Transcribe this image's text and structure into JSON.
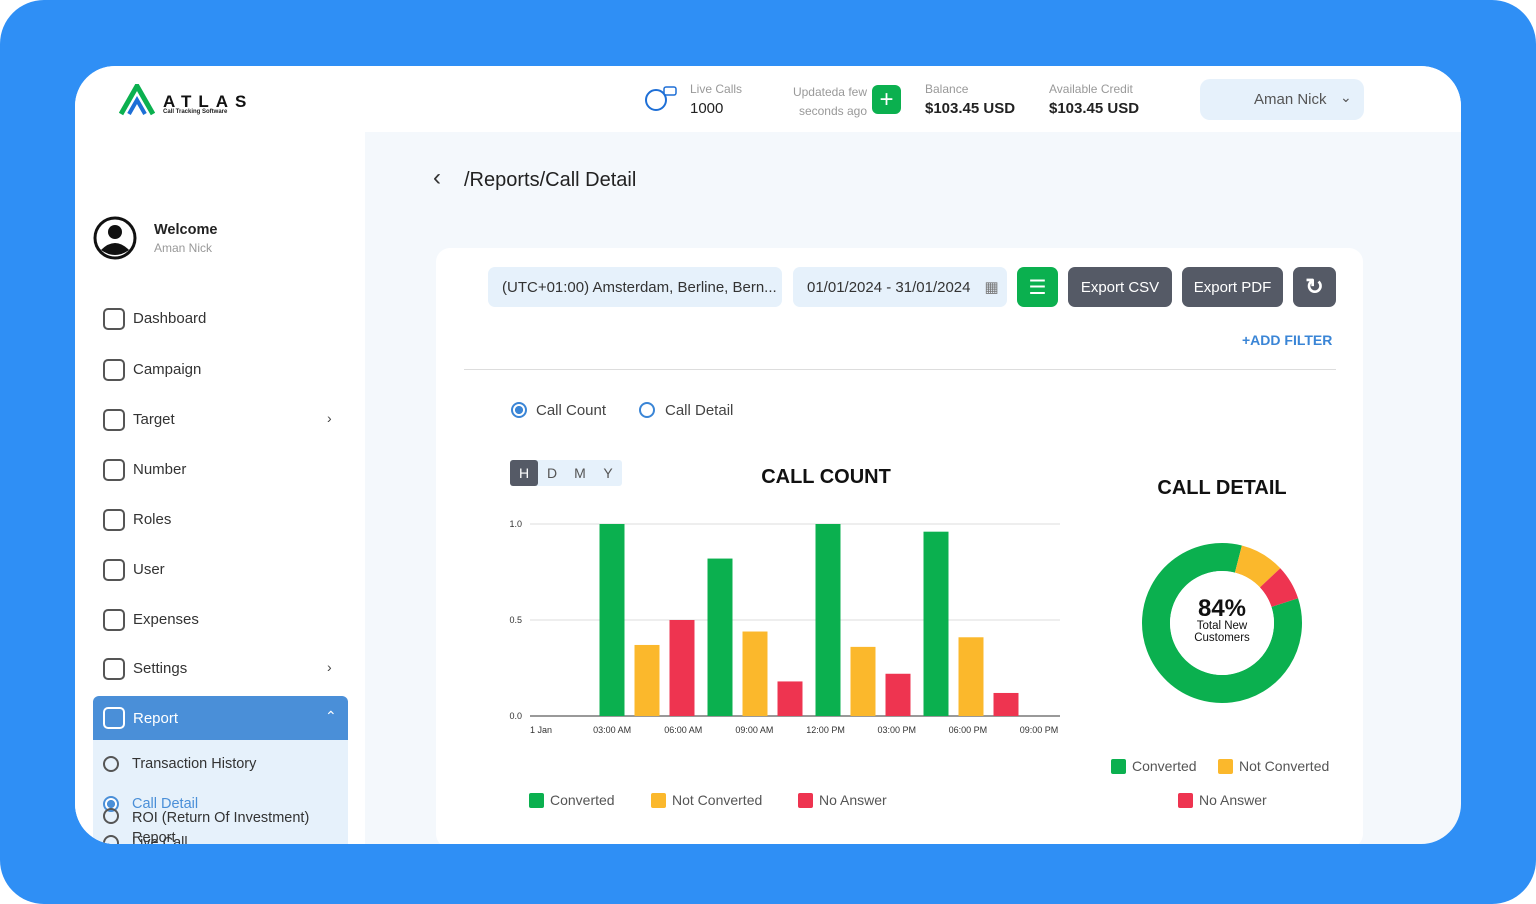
{
  "header": {
    "logo": "ATLAS",
    "tagline": "Call Tracking Software",
    "live_calls_label": "Live Calls",
    "live_calls": 1000,
    "updated": "Updateda few seconds ago",
    "balance_label": "Balance",
    "balance": "$103.45 USD",
    "credit_label": "Available Credit",
    "credit": "$103.45 USD",
    "user": "Aman Nick"
  },
  "sidebar": {
    "welcome": "Welcome",
    "name": "Aman Nick",
    "menu": [
      "Dashboard",
      "Campaign",
      "Target",
      "Number",
      "Roles",
      "User",
      "Expenses",
      "Settings",
      "Report"
    ],
    "submenu": [
      "Transaction History",
      "Call Detail",
      "Live Call",
      "ROI (Return Of Investment) Report"
    ]
  },
  "main": {
    "breadcrumb": "/Reports/Call Detail",
    "timezone": "(UTC+01:00) Amsterdam, Berline, Bern...",
    "date_range": "01/01/2024 - 31/01/2024",
    "export_csv": "Export CSV",
    "export_pdf": "Export PDF",
    "add_filter": "+ADD FILTER",
    "views": [
      "Call Count",
      "Call Detail"
    ],
    "periods": [
      "H",
      "D",
      "M",
      "Y"
    ]
  },
  "chart_data": [
    {
      "type": "bar",
      "title": "CALL COUNT",
      "categories": [
        null,
        null,
        null,
        null
      ],
      "x_labels": [
        "1 Jan",
        "03:00 AM",
        "06:00 AM",
        "09:00 AM",
        "12:00 PM",
        "03:00 PM",
        "06:00 PM",
        "09:00 PM"
      ],
      "series": [
        {
          "name": "Converted",
          "color": "#0bb04f",
          "values": [
            1.0,
            0.82,
            1.0,
            0.96
          ]
        },
        {
          "name": "Not Converted",
          "color": "#fbb82c",
          "values": [
            0.37,
            0.44,
            0.36,
            0.41
          ]
        },
        {
          "name": "No Answer",
          "color": "#ee3450",
          "values": [
            0.5,
            0.18,
            0.22,
            0.12
          ]
        }
      ],
      "ylim": [
        0,
        1
      ],
      "yticks": [
        {
          "value": 0,
          "label": "0.0"
        },
        {
          "value": 0.5,
          "label": "0.5"
        },
        {
          "value": 1,
          "label": "1.0"
        }
      ],
      "grid": true
    },
    {
      "type": "donut",
      "title": "CALL DETAIL",
      "categories": [
        "Converted",
        "Not Converted",
        "No Answer"
      ],
      "colors": [
        "#0bb04f",
        "#fbb82c",
        "#ee3450"
      ],
      "values": [
        84,
        9,
        7
      ],
      "value_labels": [
        "84%",
        null,
        null
      ],
      "center_caption": "Total New Customers"
    }
  ]
}
